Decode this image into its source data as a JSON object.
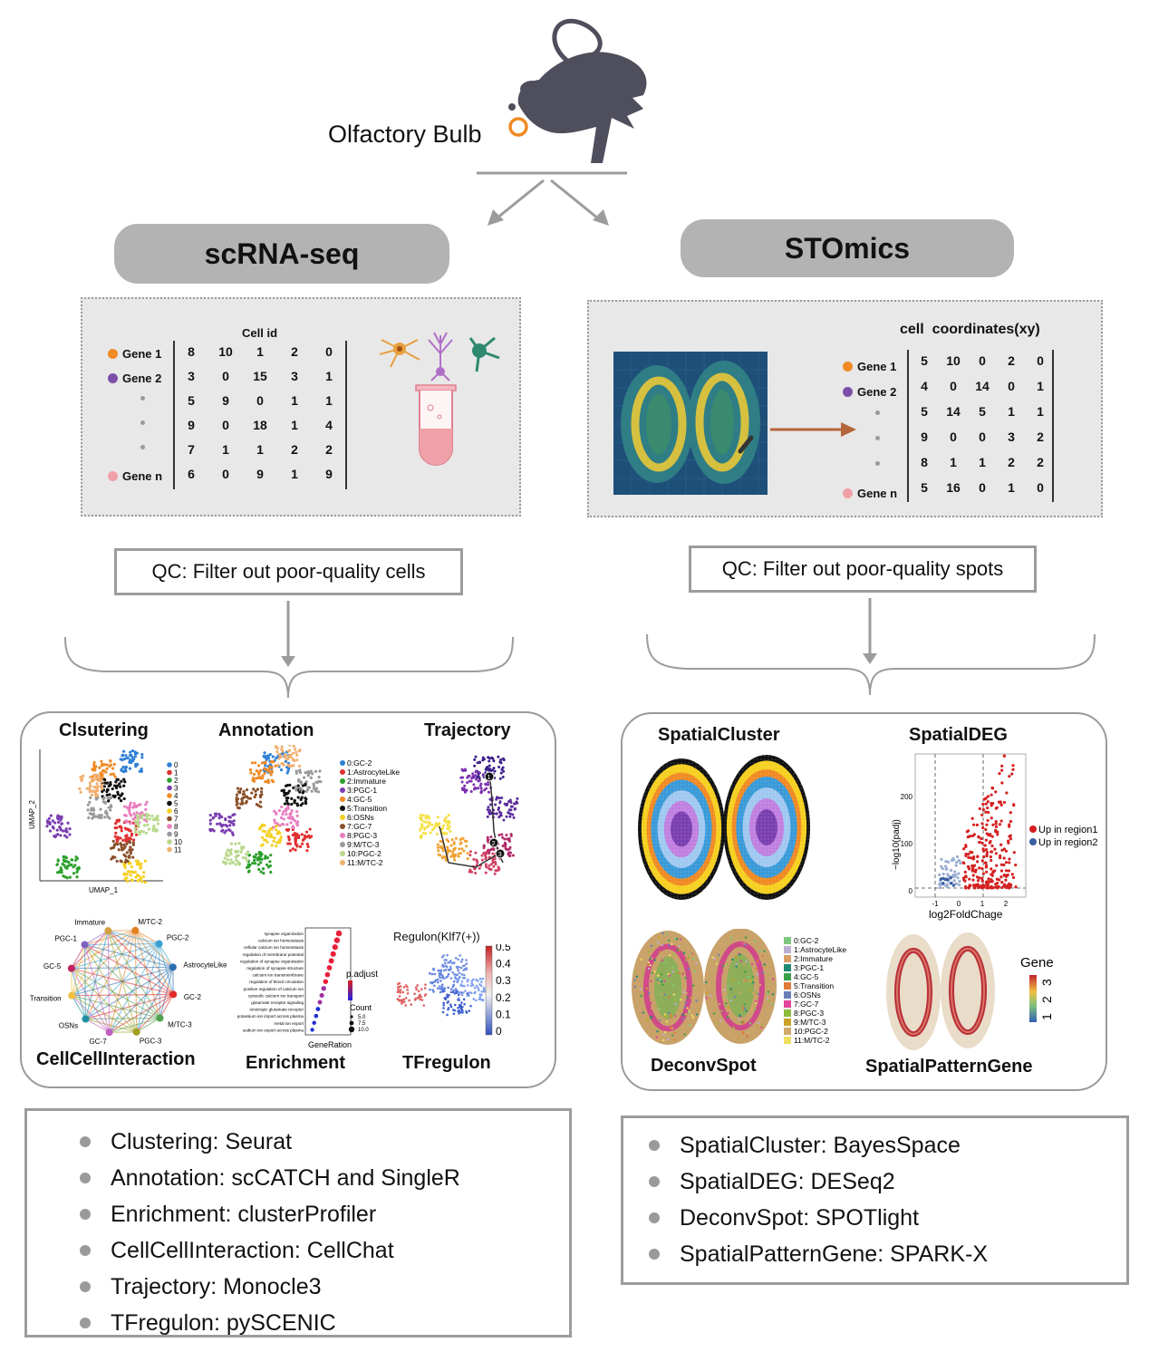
{
  "top": {
    "organ_label": "Olfactory Bulb"
  },
  "left": {
    "pill": "scRNA-seq",
    "matrix": {
      "header": "Cell id",
      "genes": [
        "Gene 1",
        "Gene 2",
        "•",
        "•",
        "•",
        "Gene n"
      ],
      "gene_colors": [
        "#f08a24",
        "#7b4fa8",
        "#9a9a9a",
        "#9a9a9a",
        "#9a9a9a",
        "#f0a0a8"
      ],
      "rows": [
        [
          "8",
          "10",
          "1",
          "2",
          "0"
        ],
        [
          "3",
          "0",
          "15",
          "3",
          "1"
        ],
        [
          "5",
          "9",
          "0",
          "1",
          "1"
        ],
        [
          "9",
          "0",
          "18",
          "1",
          "4"
        ],
        [
          "7",
          "1",
          "1",
          "2",
          "2"
        ],
        [
          "6",
          "0",
          "9",
          "1",
          "9"
        ]
      ]
    },
    "qc": "QC:  Filter out poor-quality cells",
    "panels": {
      "clustering": "Clsutering",
      "annotation": "Annotation",
      "trajectory": "Trajectory",
      "cci": "CellCellInteraction",
      "enrichment": "Enrichment",
      "tfregulon": "TFregulon",
      "umap_x": "UMAP_1",
      "umap_y": "UMAP_2",
      "cluster_ids": [
        "0",
        "1",
        "2",
        "3",
        "4",
        "5",
        "6",
        "7",
        "8",
        "9",
        "10",
        "11"
      ],
      "cluster_colors": [
        "#2e7fd6",
        "#e03030",
        "#2ca02c",
        "#7b3fb0",
        "#f08a24",
        "#111111",
        "#f5d020",
        "#8a4f2a",
        "#e87ec0",
        "#9a9a9a",
        "#b8d88a",
        "#f0b070"
      ],
      "annotation_labels": [
        "0:GC-2",
        "1:AstrocyteLike",
        "2:Immature",
        "3:PGC-1",
        "4:GC-5",
        "5:Transition",
        "6:OSNs",
        "7:GC-7",
        "8:PGC-3",
        "9:M/TC-3",
        "10:PGC-2",
        "11:M/TC-2"
      ],
      "cci_nodes": [
        "M/TC-2",
        "PGC-2",
        "AstrocyteLike",
        "GC-2",
        "M/TC-3",
        "PGC-3",
        "GC-7",
        "OSNs",
        "Transition",
        "GC-5",
        "PGC-1",
        "Immature"
      ],
      "enrichment_terms": [
        "synapse organization",
        "calcium ion homeostasis",
        "cellular calcium ion homeostasis",
        "regulation of membrane potential",
        "regulation of synapse organization",
        "regulation of synapse structure",
        "calcium ion transmembrane",
        "regulation of blood circulation",
        "positive regulation of calcium ion",
        "cytosolic calcium ion transport",
        "glutamate receptor signaling",
        "ionotropic glutamate receptor",
        "potassium ion import across plasma",
        "metal ion export",
        "sodium ion export across plasma"
      ],
      "enrichment_xlabel": "GeneRation",
      "enrichment_legend_title": "p.adjust",
      "enrichment_count_title": "Count",
      "enrichment_count_values": [
        "5.0",
        "7.5",
        "10.0"
      ],
      "regulon_title": "Regulon(Klf7(+))",
      "regulon_ticks": [
        "0.5",
        "0.4",
        "0.3",
        "0.2",
        "0.1",
        "0"
      ],
      "trajectory_nodes": [
        "1",
        "2",
        "3"
      ]
    },
    "tools": [
      "Clustering: Seurat",
      "Annotation: scCATCH and SingleR",
      "Enrichment: clusterProfiler",
      "CellCellInteraction: CellChat",
      "Trajectory: Monocle3",
      "TFregulon: pySCENIC"
    ]
  },
  "right": {
    "pill": "STOmics",
    "matrix": {
      "header": "cell  coordinates(xy)",
      "genes": [
        "Gene 1",
        "Gene 2",
        "•",
        "•",
        "•",
        "Gene n"
      ],
      "gene_colors": [
        "#f08a24",
        "#7b4fa8",
        "#9a9a9a",
        "#9a9a9a",
        "#9a9a9a",
        "#f0a0a8"
      ],
      "rows": [
        [
          "5",
          "10",
          "0",
          "2",
          "0"
        ],
        [
          "4",
          "0",
          "14",
          "0",
          "1"
        ],
        [
          "5",
          "14",
          "5",
          "1",
          "1"
        ],
        [
          "9",
          "0",
          "0",
          "3",
          "2"
        ],
        [
          "8",
          "1",
          "1",
          "2",
          "2"
        ],
        [
          "5",
          "16",
          "0",
          "1",
          "0"
        ]
      ]
    },
    "qc": "QC:  Filter out poor-quality spots",
    "panels": {
      "spatialcluster": "SpatialCluster",
      "spatialdeg": "SpatialDEG",
      "deconvspot": "DeconvSpot",
      "spatialpatterngene": "SpatialPatternGene",
      "volcano_xlabel": "log2FoldChage",
      "volcano_ylabel": "−log10(padj)",
      "volcano_yticks": [
        "200",
        "100",
        "0"
      ],
      "volcano_xticks": [
        "-1",
        "0",
        "1",
        "2"
      ],
      "volcano_legend": [
        "Up in region1",
        "Up in region2"
      ],
      "volcano_colors": [
        "#d42020",
        "#3a5fa0"
      ],
      "deconv_labels": [
        "0:GC-2",
        "1:AstrocyteLike",
        "2:Immature",
        "3:PGC-1",
        "4:GC-5",
        "5:Transition",
        "6:OSNs",
        "7:GC-7",
        "8:PGC-3",
        "9:M/TC-3",
        "10:PGC-2",
        "11:M/TC-2"
      ],
      "deconv_colors": [
        "#7fc97f",
        "#beaed4",
        "#d9a066",
        "#1f8a70",
        "#3aa04a",
        "#e07b3a",
        "#6c7fb8",
        "#e0459a",
        "#8dbb3c",
        "#c9a227",
        "#d4a86a",
        "#f0e060"
      ],
      "gene_legend_title": "Gene",
      "gene_legend_ticks": [
        "3",
        "2",
        "1"
      ]
    },
    "tools": [
      "SpatialCluster: BayesSpace",
      "SpatialDEG: DESeq2",
      "DeconvSpot: SPOTlight",
      "SpatialPatternGene: SPARK-X"
    ]
  }
}
